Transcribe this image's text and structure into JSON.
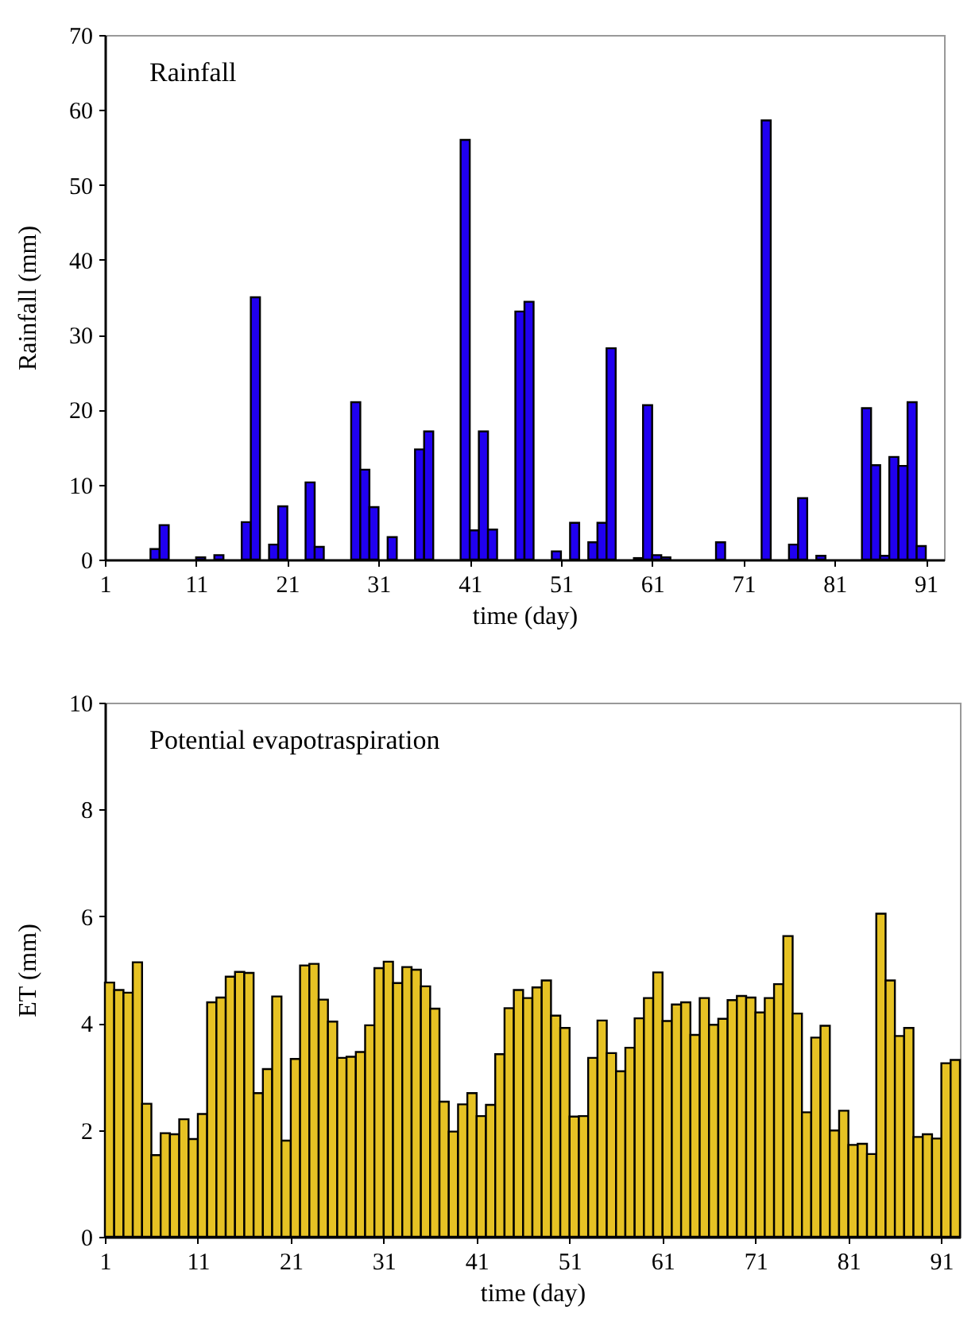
{
  "chart_data": [
    {
      "type": "bar",
      "title": "Rainfall",
      "xlabel": "time (day)",
      "ylabel": "Rainfall (mm)",
      "color": "#2000f0",
      "xlim": [
        1,
        93
      ],
      "xticks": [
        1,
        11,
        21,
        31,
        41,
        51,
        61,
        71,
        81,
        91
      ],
      "ylim": [
        0,
        70
      ],
      "yticks": [
        0,
        10,
        20,
        30,
        40,
        50,
        60,
        70
      ],
      "x": [
        6,
        7,
        11,
        13,
        16,
        17,
        19,
        20,
        23,
        24,
        28,
        29,
        30,
        32,
        35,
        36,
        40,
        41,
        42,
        43,
        46,
        47,
        50,
        52,
        54,
        55,
        56,
        59,
        60,
        61,
        62,
        68,
        73,
        76,
        77,
        79,
        84,
        85,
        86,
        87,
        88,
        89,
        90
      ],
      "values": [
        1.4,
        4.6,
        0.3,
        0.6,
        5.0,
        35.0,
        2.0,
        7.1,
        10.3,
        1.7,
        21.0,
        12.0,
        7.0,
        3.0,
        14.7,
        17.1,
        56.0,
        3.9,
        17.1,
        4.0,
        33.1,
        34.4,
        1.1,
        4.9,
        2.3,
        4.9,
        28.2,
        0.2,
        20.6,
        0.6,
        0.3,
        2.3,
        58.6,
        2.0,
        8.2,
        0.5,
        20.2,
        12.6,
        0.5,
        13.7,
        12.5,
        21.0,
        1.8
      ]
    },
    {
      "type": "bar",
      "title": "Potential evapotraspiration",
      "xlabel": "time (day)",
      "ylabel": "ET (mm)",
      "color": "#e6c224",
      "xlim": [
        1,
        93
      ],
      "xticks": [
        1,
        11,
        21,
        31,
        41,
        51,
        61,
        71,
        81,
        91
      ],
      "ylim": [
        0,
        10
      ],
      "yticks": [
        0,
        2,
        4,
        6,
        8,
        10
      ],
      "x": [
        1,
        2,
        3,
        4,
        5,
        6,
        7,
        8,
        9,
        10,
        11,
        12,
        13,
        14,
        15,
        16,
        17,
        18,
        19,
        20,
        21,
        22,
        23,
        24,
        25,
        26,
        27,
        28,
        29,
        30,
        31,
        32,
        33,
        34,
        35,
        36,
        37,
        38,
        39,
        40,
        41,
        42,
        43,
        44,
        45,
        46,
        47,
        48,
        49,
        50,
        51,
        52,
        53,
        54,
        55,
        56,
        57,
        58,
        59,
        60,
        61,
        62,
        63,
        64,
        65,
        66,
        67,
        68,
        69,
        70,
        71,
        72,
        73,
        74,
        75,
        76,
        77,
        78,
        79,
        80,
        81,
        82,
        83,
        84,
        85,
        86,
        87,
        88,
        89,
        90,
        91,
        92
      ],
      "values": [
        4.76,
        4.62,
        4.57,
        5.14,
        2.49,
        1.53,
        1.94,
        1.92,
        2.2,
        1.83,
        2.3,
        4.39,
        4.48,
        4.87,
        4.96,
        4.94,
        2.69,
        3.14,
        4.5,
        1.8,
        3.33,
        5.08,
        5.11,
        4.44,
        4.03,
        3.35,
        3.37,
        3.46,
        3.96,
        5.03,
        5.15,
        4.75,
        5.05,
        5.0,
        4.69,
        4.27,
        2.53,
        1.97,
        2.48,
        2.69,
        2.26,
        2.47,
        3.42,
        4.28,
        4.62,
        4.47,
        4.67,
        4.8,
        4.14,
        3.91,
        2.25,
        2.26,
        3.35,
        4.05,
        3.44,
        3.1,
        3.54,
        4.09,
        4.47,
        4.95,
        4.04,
        4.35,
        4.39,
        3.78,
        4.47,
        3.97,
        4.08,
        4.43,
        4.51,
        4.48,
        4.2,
        4.47,
        4.73,
        5.63,
        4.18,
        2.33,
        3.73,
        3.95,
        1.99,
        2.36,
        1.72,
        1.74,
        1.55,
        6.05,
        4.8,
        3.76,
        3.91,
        1.87,
        1.92,
        1.84,
        3.25,
        3.31
      ]
    }
  ]
}
